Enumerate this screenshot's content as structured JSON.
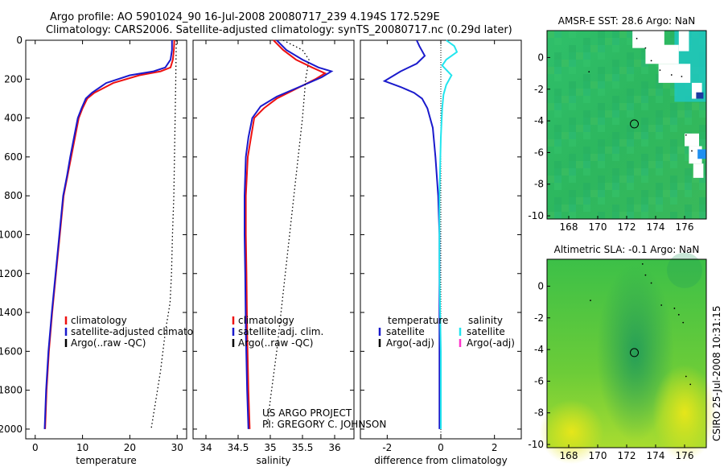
{
  "header": {
    "line1": "Argo profile: AO 5901024_90 16-Jul-2008 20080717_239 4.194S 172.529E",
    "line2": "Climatology: CARS2006. Satellite-adjusted climatology: synTS_20080717.nc (0.29d later)"
  },
  "credit": {
    "project": "US ARGO PROJECT",
    "pi": "PI: GREGORY C. JOHNSON"
  },
  "stamp": "CSIRO 25-Jul-2008 10:31:15",
  "colors": {
    "red": "#ee1111",
    "blue": "#1a1acc",
    "cyan": "#22e5ee",
    "magenta": "#ff33cc",
    "black": "#000000"
  },
  "chart_data": [
    {
      "type": "line",
      "xlabel": "temperature",
      "xlim": [
        -2,
        32
      ],
      "ylim": [
        2050,
        0
      ],
      "xticks": [
        0,
        10,
        20,
        30
      ],
      "yticks": [
        0,
        200,
        400,
        600,
        800,
        1000,
        1200,
        1400,
        1600,
        1800,
        2000
      ],
      "legend_position": "lower-middle",
      "series": [
        {
          "name": "climatology",
          "color": "#ee1111",
          "x": [
            29.4,
            29.3,
            29.1,
            28.6,
            26.5,
            22.0,
            16.5,
            12.5,
            11.0,
            10.0,
            9.2,
            8.4,
            7.6,
            6.8,
            6.0,
            5.2,
            4.4,
            3.6,
            2.9,
            2.4,
            2.1
          ],
          "y": [
            0,
            50,
            100,
            140,
            160,
            180,
            220,
            270,
            300,
            350,
            400,
            500,
            600,
            700,
            800,
            1000,
            1200,
            1400,
            1600,
            1800,
            2000
          ]
        },
        {
          "name": "satellite-adjusted climatology",
          "color": "#1a1acc",
          "x": [
            28.9,
            28.9,
            28.6,
            27.5,
            25.0,
            20.0,
            15.0,
            12.0,
            10.7,
            9.8,
            9.0,
            8.2,
            7.4,
            6.7,
            5.9,
            5.1,
            4.3,
            3.5,
            2.8,
            2.3,
            2.0
          ],
          "y": [
            0,
            50,
            100,
            140,
            160,
            180,
            220,
            270,
            300,
            350,
            400,
            500,
            600,
            700,
            800,
            1000,
            1200,
            1400,
            1600,
            1800,
            2000
          ]
        },
        {
          "name": "Argo(..raw -QC)",
          "color": "#000000",
          "dash": true,
          "x": [
            29.8,
            29.7,
            29.5,
            29.3,
            29.0,
            28.8,
            28.5,
            27.5,
            26.5,
            25.5,
            24.5
          ],
          "y": [
            0,
            200,
            500,
            800,
            1000,
            1200,
            1350,
            1500,
            1700,
            1850,
            2000
          ]
        }
      ]
    },
    {
      "type": "line",
      "xlabel": "salinity",
      "xlim": [
        33.8,
        36.3
      ],
      "ylim": [
        2050,
        0
      ],
      "xticks": [
        34,
        34.5,
        35,
        35.5,
        36
      ],
      "legend_position": "lower-middle",
      "series": [
        {
          "name": "climatology",
          "color": "#ee1111",
          "x": [
            35.05,
            35.2,
            35.4,
            35.65,
            35.85,
            35.7,
            35.4,
            35.1,
            34.9,
            34.75,
            34.7,
            34.65,
            34.62,
            34.62,
            34.63,
            34.64,
            34.66,
            34.68
          ],
          "y": [
            0,
            50,
            100,
            140,
            170,
            200,
            250,
            300,
            350,
            400,
            500,
            600,
            800,
            1000,
            1200,
            1500,
            1800,
            2000
          ]
        },
        {
          "name": "satellite adj. clim.",
          "color": "#1a1acc",
          "x": [
            35.1,
            35.25,
            35.5,
            35.75,
            35.95,
            35.8,
            35.45,
            35.1,
            34.85,
            34.72,
            34.66,
            34.62,
            34.6,
            34.6,
            34.61,
            34.62,
            34.64,
            34.66
          ],
          "y": [
            0,
            50,
            100,
            140,
            160,
            190,
            240,
            290,
            340,
            400,
            500,
            600,
            800,
            1000,
            1200,
            1500,
            1800,
            2000
          ]
        },
        {
          "name": "Argo(..raw -QC)",
          "color": "#000000",
          "dash": true,
          "x": [
            35.2,
            35.5,
            35.6,
            35.55,
            35.5,
            35.4,
            35.3,
            35.2,
            35.1,
            35.0,
            34.95
          ],
          "y": [
            0,
            50,
            100,
            200,
            400,
            700,
            1000,
            1300,
            1600,
            1850,
            2000
          ]
        }
      ]
    },
    {
      "type": "line",
      "xlabel": "difference from climatology",
      "xlim": [
        -3,
        3
      ],
      "ylim": [
        2050,
        0
      ],
      "xticks": [
        -2,
        0,
        2
      ],
      "legend_position": "lower-middle",
      "legend_columns": [
        {
          "header": "temperature",
          "entries": [
            "satellite",
            "Argo(-adj)"
          ]
        },
        {
          "header": "salinity",
          "entries": [
            "satellite",
            "Argo(-adj)"
          ]
        }
      ],
      "series": [
        {
          "name": "satellite",
          "group": "temperature",
          "color": "#1a1acc",
          "x": [
            -0.9,
            -0.8,
            -0.6,
            -0.9,
            -1.5,
            -2.1,
            -1.5,
            -1.0,
            -0.7,
            -0.5,
            -0.3,
            -0.2,
            -0.1,
            -0.05,
            -0.05,
            -0.05,
            -0.05
          ],
          "y": [
            0,
            30,
            80,
            120,
            160,
            210,
            240,
            270,
            300,
            350,
            450,
            600,
            800,
            1000,
            1300,
            1600,
            2000
          ]
        },
        {
          "name": "satellite",
          "group": "salinity",
          "color": "#22e5ee",
          "x": [
            0.2,
            0.5,
            0.6,
            0.2,
            0.05,
            0.4,
            0.2,
            0.1,
            0.05,
            0.0,
            -0.05,
            -0.05,
            0.0,
            0.0
          ],
          "y": [
            0,
            30,
            60,
            100,
            130,
            180,
            230,
            280,
            350,
            500,
            800,
            1200,
            1600,
            2000
          ]
        }
      ]
    },
    {
      "type": "heatmap",
      "title": "AMSR-E SST: 28.6 Argo: NaN",
      "xlim": [
        166.5,
        177.5
      ],
      "ylim": [
        -10.2,
        1.7
      ],
      "xticks": [
        168,
        170,
        172,
        174,
        176
      ],
      "yticks": [
        0,
        -2,
        -4,
        -6,
        -8,
        -10
      ],
      "marker": {
        "x": 172.529,
        "y": -4.194
      }
    },
    {
      "type": "heatmap",
      "title": "Altimetric SLA: -0.1 Argo: NaN",
      "xlim": [
        166.5,
        177.5
      ],
      "ylim": [
        -10.2,
        1.7
      ],
      "xticks": [
        168,
        170,
        172,
        174,
        176
      ],
      "yticks": [
        0,
        -2,
        -4,
        -6,
        -8,
        -10
      ],
      "marker": {
        "x": 172.529,
        "y": -4.194
      }
    }
  ]
}
